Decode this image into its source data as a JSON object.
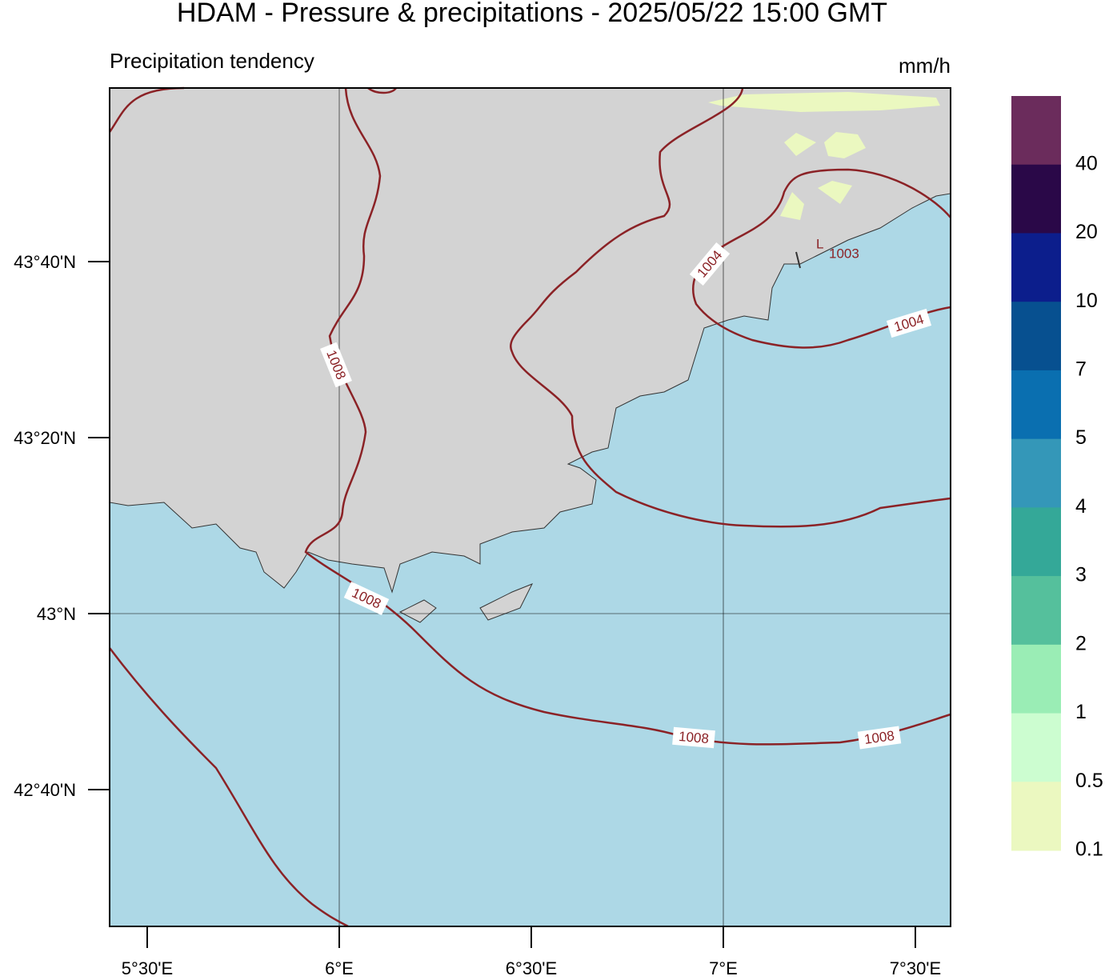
{
  "header": {
    "title": "HDAM - Pressure & precipitations  -  2025/05/22  15:00 GMT",
    "subtitle": "Precipitation tendency",
    "units": "mm/h"
  },
  "map": {
    "lat_labels": [
      "43°40'N",
      "43°20'N",
      "43°N",
      "42°40'N"
    ],
    "lon_labels": [
      "5°30'E",
      "6°E",
      "6°30'E",
      "7°E",
      "7°30'E"
    ],
    "contour_labels": [
      "1008",
      "1004",
      "1004",
      "1008",
      "1008",
      "1008"
    ],
    "low": {
      "symbol": "L",
      "value": "1003"
    }
  },
  "colorbar": {
    "labels": [
      "40",
      "20",
      "10",
      "7",
      "5",
      "4",
      "3",
      "2",
      "1",
      "0.5",
      "0.1"
    ],
    "colors": [
      "#6b2c5c",
      "#2a0848",
      "#0c1e8c",
      "#075090",
      "#0a6fb0",
      "#3497b8",
      "#34a898",
      "#55c09c",
      "#9aedb5",
      "#ccfdd0",
      "#ebf8c0"
    ]
  }
}
